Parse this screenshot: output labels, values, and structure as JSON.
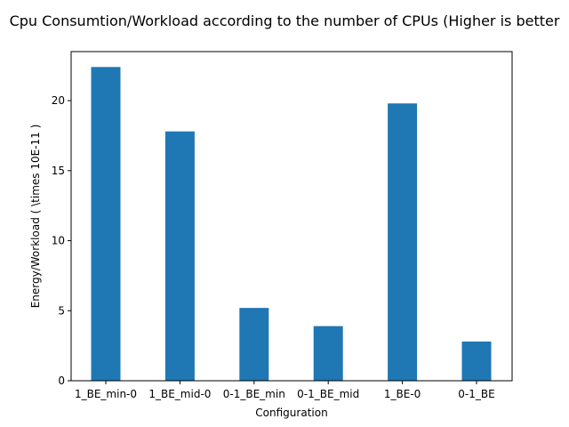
{
  "chart_data": {
    "type": "bar",
    "title": "Cpu Consumtion/Workload according to the number of CPUs (Higher is better",
    "xlabel": "Configuration",
    "ylabel": "Energy/Workload ( \\times 10E-11 )",
    "categories": [
      "1_BE_min-0",
      "1_BE_mid-0",
      "0-1_BE_min",
      "0-1_BE_mid",
      "1_BE-0",
      "0-1_BE"
    ],
    "values": [
      22.4,
      17.8,
      5.2,
      3.9,
      19.8,
      2.8
    ],
    "ylim": [
      0,
      23.5
    ],
    "yticks": [
      0,
      5,
      10,
      15,
      20
    ],
    "bar_color": "#1f77b4",
    "grid": false,
    "legend": "none"
  }
}
